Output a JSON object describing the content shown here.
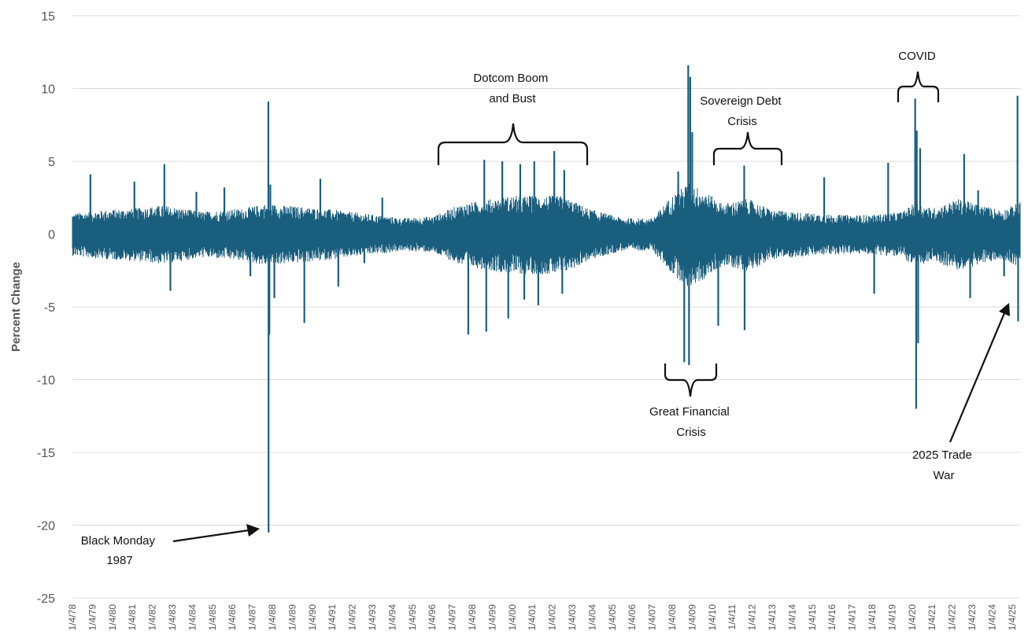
{
  "chart_data": {
    "type": "line",
    "title": "",
    "xlabel": "",
    "ylabel": "Percent Change",
    "ylim": [
      -25,
      15
    ],
    "yticks": [
      15,
      10,
      5,
      0,
      -5,
      -10,
      -15,
      -20,
      -25
    ],
    "x_start": 1978.0,
    "x_end": 2025.4,
    "xtick_labels": [
      "1/4/78",
      "1/4/79",
      "1/4/80",
      "1/4/81",
      "1/4/82",
      "1/4/83",
      "1/4/84",
      "1/4/85",
      "1/4/86",
      "1/4/87",
      "1/4/88",
      "1/4/89",
      "1/4/90",
      "1/4/91",
      "1/4/92",
      "1/4/93",
      "1/4/94",
      "1/4/95",
      "1/4/96",
      "1/4/97",
      "1/4/98",
      "1/4/99",
      "1/4/00",
      "1/4/01",
      "1/4/02",
      "1/4/03",
      "1/4/04",
      "1/4/05",
      "1/4/06",
      "1/4/07",
      "1/4/08",
      "1/4/09",
      "1/4/10",
      "1/4/11",
      "1/4/12",
      "1/4/13",
      "1/4/14",
      "1/4/15",
      "1/4/16",
      "1/4/17",
      "1/4/18",
      "1/4/19",
      "1/4/20",
      "1/4/21",
      "1/4/22",
      "1/4/23",
      "1/4/24",
      "1/4/25"
    ],
    "grid": true,
    "color": "#1a5e7e",
    "volatility_envelope": {
      "x": [
        1978.0,
        1979.5,
        1981.0,
        1982.5,
        1984.5,
        1986.5,
        1987.7,
        1988.5,
        1990.5,
        1992.5,
        1994.5,
        1996.0,
        1997.5,
        2000.0,
        2002.5,
        2003.8,
        2005.5,
        2007.0,
        2008.0,
        2008.8,
        2009.5,
        2010.5,
        2011.8,
        2013.0,
        2015.0,
        2016.5,
        2018.0,
        2019.5,
        2020.2,
        2021.0,
        2022.3,
        2023.5,
        2024.5,
        2025.4
      ],
      "y": [
        1.3,
        1.5,
        1.6,
        1.8,
        1.4,
        1.6,
        1.9,
        1.8,
        1.6,
        1.3,
        1.0,
        1.1,
        1.9,
        2.4,
        2.4,
        1.6,
        1.0,
        1.0,
        2.4,
        3.2,
        2.8,
        1.9,
        2.2,
        1.5,
        1.3,
        1.2,
        1.2,
        1.4,
        2.0,
        1.6,
        2.2,
        1.8,
        1.5,
        2.0
      ]
    },
    "spikes": {
      "x": [
        1978.9,
        1981.1,
        1982.6,
        1982.9,
        1984.2,
        1985.6,
        1986.9,
        1987.8,
        1987.81,
        1987.85,
        1987.9,
        1988.1,
        1989.6,
        1990.4,
        1991.3,
        1992.6,
        1993.5,
        1997.8,
        1998.6,
        1998.7,
        1999.5,
        1999.8,
        2000.4,
        2000.6,
        2001.1,
        2001.3,
        2002.1,
        2002.5,
        2002.6,
        2008.3,
        2008.6,
        2008.8,
        2008.84,
        2008.9,
        2009.0,
        2010.3,
        2011.6,
        2011.62,
        2015.6,
        2018.1,
        2018.8,
        2020.15,
        2020.2,
        2020.23,
        2020.3,
        2020.4,
        2022.6,
        2022.9,
        2023.3,
        2024.6,
        2025.27,
        2025.3
      ],
      "y": [
        4.1,
        3.6,
        4.8,
        -3.9,
        2.9,
        3.2,
        -2.9,
        9.1,
        -20.5,
        -6.9,
        3.4,
        -4.4,
        -6.1,
        3.8,
        -3.6,
        -2.0,
        2.5,
        -6.9,
        5.1,
        -6.7,
        5.0,
        -5.8,
        4.8,
        -4.5,
        5.0,
        -4.9,
        5.7,
        -4.1,
        4.4,
        4.3,
        -8.8,
        11.6,
        -9.0,
        10.8,
        7.0,
        -6.3,
        4.7,
        -6.6,
        3.9,
        -4.1,
        4.9,
        9.3,
        -12.0,
        7.1,
        -7.5,
        5.9,
        5.5,
        -4.4,
        3.0,
        -2.9,
        9.5,
        -6.0
      ]
    },
    "annotations": [
      {
        "id": "black-monday",
        "lines": [
          "Black Monday",
          "1987"
        ]
      },
      {
        "id": "dotcom",
        "lines": [
          "Dotcom Boom",
          "and Bust"
        ]
      },
      {
        "id": "gfc",
        "lines": [
          "Great Financial",
          "Crisis"
        ]
      },
      {
        "id": "sovereign",
        "lines": [
          "Sovereign Debt",
          "Crisis"
        ]
      },
      {
        "id": "covid",
        "lines": [
          "COVID"
        ]
      },
      {
        "id": "trade-war",
        "lines": [
          "2025 Trade",
          "War"
        ]
      }
    ]
  }
}
